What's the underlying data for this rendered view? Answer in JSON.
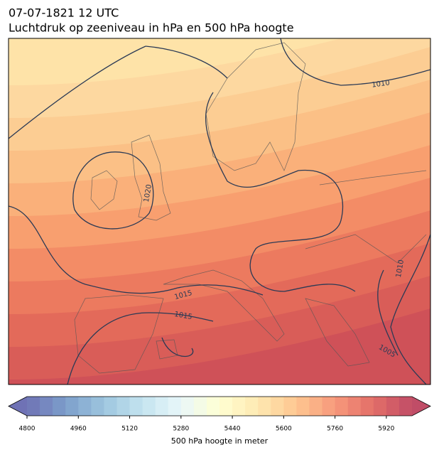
{
  "header": {
    "title": "07-07-1821 12 UTC",
    "subtitle": "Luchtdruk op zeeniveau in hPa en 500 hPa hoogte"
  },
  "map": {
    "contour_labels": [
      "1010",
      "1020",
      "1015",
      "1015",
      "1010",
      "1005"
    ]
  },
  "colorbar": {
    "lim": [
      4800,
      6000
    ],
    "ticks": [
      4800,
      4960,
      5120,
      5280,
      5440,
      5600,
      5760,
      5920
    ],
    "label": "500 hPa hoogte in meter"
  }
}
